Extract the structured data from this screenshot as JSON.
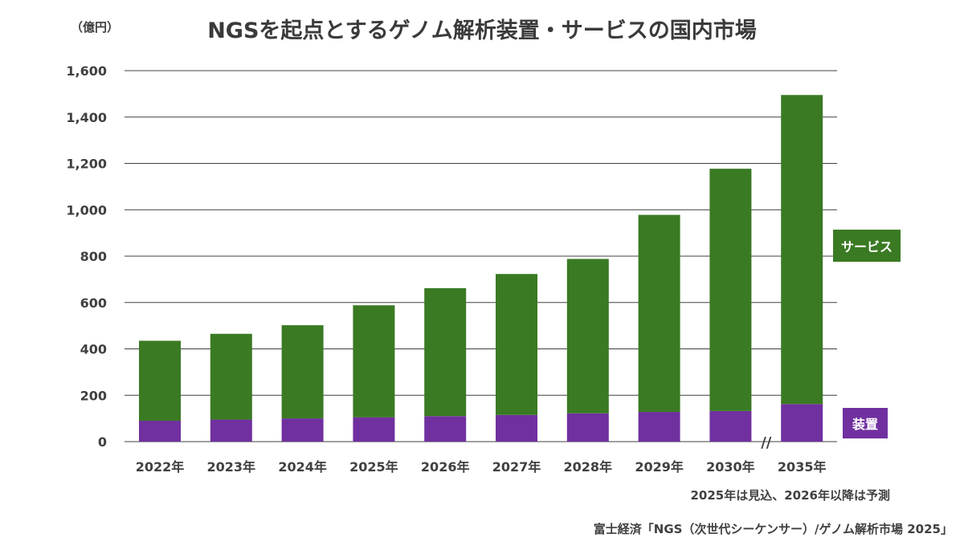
{
  "chart_data": {
    "type": "bar",
    "stacked": true,
    "title": "NGSを起点とするゲノム解析装置・サービスの国内市場",
    "unit_label": "（億円）",
    "categories": [
      "2022年",
      "2023年",
      "2024年",
      "2025年",
      "2026年",
      "2027年",
      "2028年",
      "2029年",
      "2030年",
      "2035年"
    ],
    "series": [
      {
        "name": "装置",
        "color": "#7030a0",
        "values": [
          90,
          95,
          100,
          105,
          110,
          115,
          122,
          128,
          132,
          162
        ]
      },
      {
        "name": "サービス",
        "color": "#3a7a23",
        "values": [
          345,
          370,
          402,
          483,
          552,
          608,
          666,
          850,
          1045,
          1333
        ]
      }
    ],
    "ylim": [
      0,
      1600
    ],
    "yticks": [
      0,
      200,
      400,
      600,
      800,
      1000,
      1200,
      1400,
      1600
    ],
    "ytick_labels": [
      "0",
      "200",
      "400",
      "600",
      "800",
      "1,000",
      "1,200",
      "1,400",
      "1,600"
    ],
    "grid": true,
    "axis_break_marker": "//",
    "legend_placement": "right"
  },
  "note": "2025年は見込、2026年以降は予測",
  "source": "富士経済「NGS（次世代シーケンサー）/ゲノム解析市場 2025」"
}
